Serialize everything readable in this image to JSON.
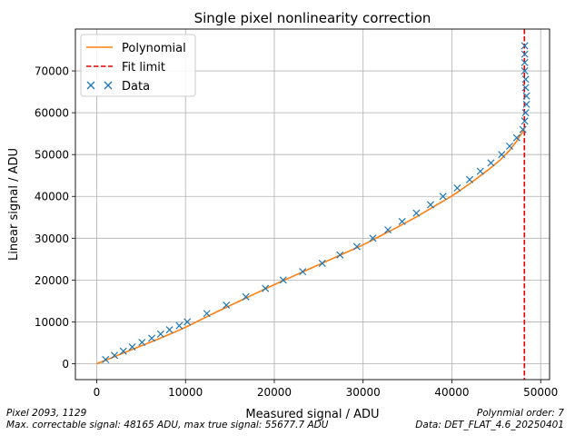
{
  "chart_data": {
    "type": "line",
    "title": "Single pixel nonlinearity correction",
    "xlabel": "Measured signal / ADU",
    "ylabel": "Linear signal / ADU",
    "xlim": [
      -2400,
      51000
    ],
    "ylim": [
      -3800,
      80000
    ],
    "xticks": [
      0,
      10000,
      20000,
      30000,
      40000,
      50000
    ],
    "yticks": [
      0,
      10000,
      20000,
      30000,
      40000,
      50000,
      60000,
      70000
    ],
    "grid": true,
    "legend_position": "upper-left",
    "fit_limit_x": 48165,
    "series": [
      {
        "name": "Polynomial",
        "style": "line",
        "color": "#ff7f0e",
        "points": [
          [
            0,
            0
          ],
          [
            1000,
            850
          ],
          [
            2000,
            1700
          ],
          [
            3000,
            2550
          ],
          [
            4000,
            3400
          ],
          [
            5000,
            4250
          ],
          [
            6000,
            5100
          ],
          [
            7000,
            5980
          ],
          [
            8000,
            6850
          ],
          [
            9000,
            7750
          ],
          [
            10000,
            8700
          ],
          [
            12000,
            10800
          ],
          [
            14000,
            12900
          ],
          [
            16000,
            14900
          ],
          [
            18000,
            16900
          ],
          [
            20000,
            18900
          ],
          [
            22000,
            20800
          ],
          [
            24000,
            22700
          ],
          [
            26000,
            24600
          ],
          [
            28000,
            26500
          ],
          [
            30000,
            28400
          ],
          [
            32000,
            30600
          ],
          [
            34000,
            32800
          ],
          [
            36000,
            35100
          ],
          [
            38000,
            37600
          ],
          [
            40000,
            40100
          ],
          [
            42000,
            43000
          ],
          [
            44000,
            46200
          ],
          [
            45500,
            48800
          ],
          [
            46500,
            51000
          ],
          [
            47300,
            53200
          ],
          [
            48000,
            55600
          ],
          [
            48165,
            56100
          ]
        ]
      },
      {
        "name": "Fit limit",
        "style": "dashed",
        "color": "#e60000"
      },
      {
        "name": "Data",
        "style": "marker-x",
        "color": "#1f77b4",
        "points": [
          [
            1000,
            1000
          ],
          [
            2000,
            2000
          ],
          [
            3000,
            3000
          ],
          [
            4000,
            4000
          ],
          [
            5100,
            5100
          ],
          [
            6200,
            6100
          ],
          [
            7200,
            7100
          ],
          [
            8200,
            8100
          ],
          [
            9300,
            9100
          ],
          [
            10200,
            10000
          ],
          [
            12400,
            12000
          ],
          [
            14600,
            14000
          ],
          [
            16800,
            16000
          ],
          [
            19000,
            18000
          ],
          [
            21000,
            20000
          ],
          [
            23200,
            22000
          ],
          [
            25400,
            24000
          ],
          [
            27400,
            26000
          ],
          [
            29300,
            28000
          ],
          [
            31100,
            30000
          ],
          [
            32800,
            32000
          ],
          [
            34400,
            34000
          ],
          [
            36000,
            36000
          ],
          [
            37600,
            38000
          ],
          [
            39000,
            40000
          ],
          [
            40600,
            42000
          ],
          [
            42000,
            44000
          ],
          [
            43200,
            46000
          ],
          [
            44400,
            48000
          ],
          [
            45600,
            50000
          ],
          [
            46500,
            52000
          ],
          [
            47300,
            54000
          ],
          [
            48000,
            56000
          ],
          [
            48200,
            58000
          ],
          [
            48300,
            60000
          ],
          [
            48400,
            62000
          ],
          [
            48400,
            64000
          ],
          [
            48300,
            66000
          ],
          [
            48300,
            68000
          ],
          [
            48200,
            70000
          ],
          [
            48200,
            72000
          ],
          [
            48200,
            74000
          ],
          [
            48200,
            76000
          ]
        ]
      }
    ]
  },
  "footer": {
    "left_line1": "Pixel 2093, 1129",
    "left_line2": "Max. correctable signal:  48165 ADU, max true signal: 55677.7 ADU",
    "right_line1": "Polynmial order: 7",
    "right_line2": "Data: DET_FLAT_4.6_20250401"
  }
}
